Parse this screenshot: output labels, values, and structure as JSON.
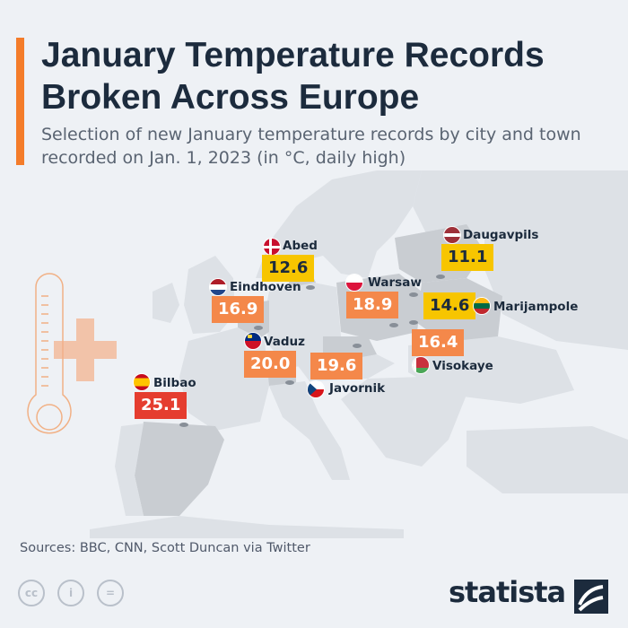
{
  "title": "January Temperature Records Broken Across Europe",
  "subtitle": "Selection of new January temperature records by city and town recorded on Jan. 1, 2023 (in °C, daily high)",
  "source": "Sources: BBC, CNN, Scott Duncan via Twitter",
  "brand": "statista",
  "license_icons": [
    "cc",
    "i",
    "="
  ],
  "colors": {
    "accent": "#f47c2a",
    "record_high": "#e53d2f",
    "record_mid": "#f4884a",
    "record_low": "#f7c500",
    "land": "#c9cdd2",
    "text": "#1c2b3d"
  },
  "records": [
    {
      "city": "Abed",
      "value": "12.6",
      "country_flag": "denmark",
      "level": "yellow"
    },
    {
      "city": "Daugavpils",
      "value": "11.1",
      "country_flag": "latvia",
      "level": "yellow"
    },
    {
      "city": "Eindhoven",
      "value": "16.9",
      "country_flag": "netherlands",
      "level": "orange"
    },
    {
      "city": "Warsaw",
      "value": "18.9",
      "country_flag": "poland",
      "level": "orange"
    },
    {
      "city": "Marijampole",
      "value": "14.6",
      "country_flag": "lithuania",
      "level": "yellow"
    },
    {
      "city": "Vaduz",
      "value": "20.0",
      "country_flag": "liechtenstein",
      "level": "orange"
    },
    {
      "city": "Visokaye",
      "value": "16.4",
      "country_flag": "belarus",
      "level": "orange"
    },
    {
      "city": "Javornik",
      "value": "19.6",
      "country_flag": "czechia",
      "level": "orange"
    },
    {
      "city": "Bilbao",
      "value": "25.1",
      "country_flag": "spain",
      "level": "red"
    }
  ]
}
